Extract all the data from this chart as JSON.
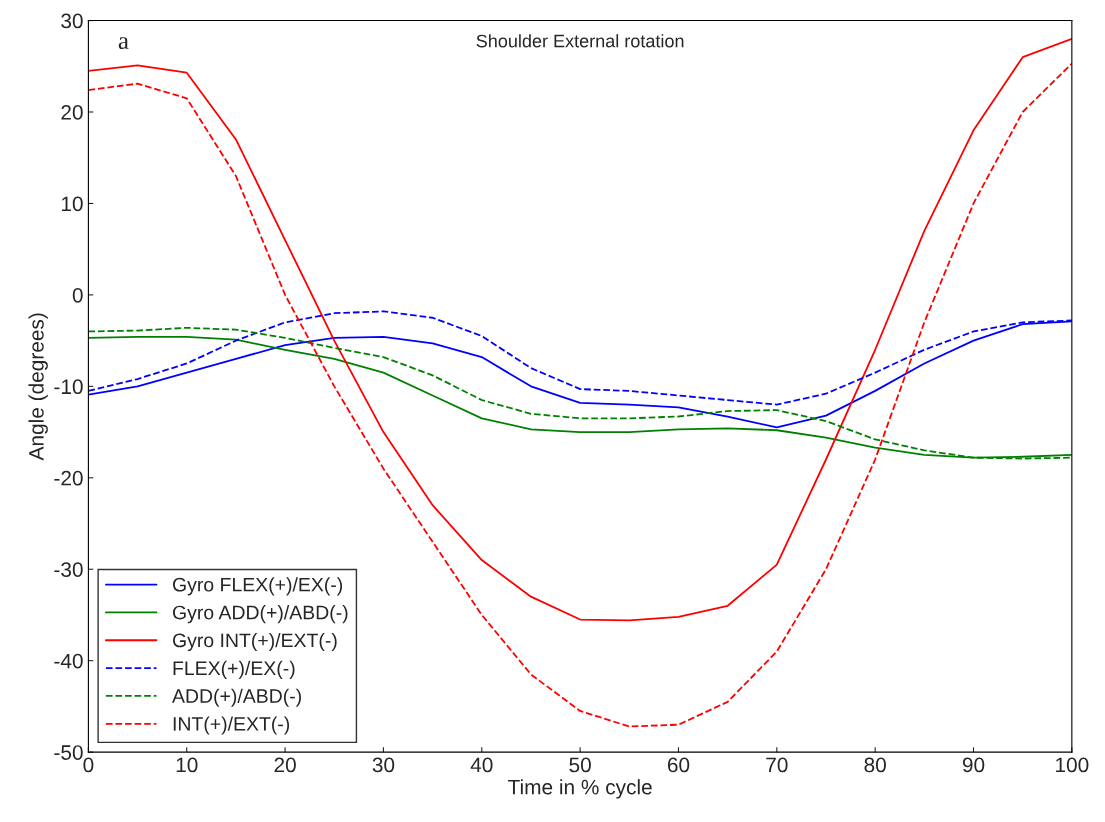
{
  "chart_data": {
    "type": "line",
    "title": "Shoulder External rotation",
    "xlabel": "Time in % cycle",
    "ylabel": "Angle (degrees)",
    "annotations": [
      "a"
    ],
    "x": [
      0,
      5,
      10,
      15,
      20,
      25,
      30,
      35,
      40,
      45,
      50,
      55,
      60,
      65,
      70,
      75,
      80,
      85,
      90,
      95,
      100
    ],
    "series": [
      {
        "name": "Gyro FLEX(+)/EX(-)",
        "color": "#0000ff",
        "line_style": "solid",
        "values": [
          -10.9,
          -10,
          -8.5,
          -7,
          -5.5,
          -4.7,
          -4.6,
          -5.3,
          -6.8,
          -10,
          -11.8,
          -12,
          -12.3,
          -13.3,
          -14.5,
          -13.2,
          -10.5,
          -7.5,
          -5,
          -3.2,
          -2.9
        ]
      },
      {
        "name": "Gyro ADD(+)/ABD(-)",
        "color": "#008000",
        "line_style": "solid",
        "values": [
          -4.7,
          -4.6,
          -4.6,
          -4.9,
          -6,
          -7,
          -8.5,
          -11,
          -13.5,
          -14.7,
          -15,
          -15,
          -14.7,
          -14.6,
          -14.8,
          -15.6,
          -16.7,
          -17.5,
          -17.8,
          -17.7,
          -17.5
        ]
      },
      {
        "name": "Gyro INT(+)/EXT(-)",
        "color": "#ff0000",
        "line_style": "solid",
        "values": [
          24.5,
          25.1,
          24.3,
          17,
          6,
          -5,
          -15,
          -23,
          -29,
          -33,
          -35.5,
          -35.6,
          -35.2,
          -34,
          -29.5,
          -18,
          -6,
          7,
          18,
          26,
          28
        ]
      },
      {
        "name": "FLEX(+)/EX(-)",
        "color": "#0000ff",
        "line_style": "dashed",
        "values": [
          -10.5,
          -9.2,
          -7.5,
          -5,
          -3,
          -2,
          -1.8,
          -2.5,
          -4.5,
          -8,
          -10.3,
          -10.5,
          -11,
          -11.5,
          -12,
          -10.8,
          -8.5,
          -6,
          -4,
          -3,
          -2.8
        ]
      },
      {
        "name": "ADD(+)/ABD(-)",
        "color": "#008000",
        "line_style": "dashed",
        "values": [
          -4,
          -3.9,
          -3.6,
          -3.8,
          -4.7,
          -5.8,
          -6.8,
          -8.8,
          -11.5,
          -13,
          -13.5,
          -13.5,
          -13.3,
          -12.7,
          -12.6,
          -13.8,
          -15.8,
          -17,
          -17.8,
          -17.9,
          -17.8
        ]
      },
      {
        "name": "INT(+)/EXT(-)",
        "color": "#ff0000",
        "line_style": "dashed",
        "values": [
          22.4,
          23.1,
          21.5,
          13,
          0,
          -10,
          -19,
          -27,
          -35,
          -41.5,
          -45.5,
          -47.2,
          -47,
          -44.5,
          -39,
          -30,
          -18,
          -3,
          10,
          20,
          25.3
        ]
      }
    ],
    "xlim": [
      0,
      100
    ],
    "xticks": [
      0,
      10,
      20,
      30,
      40,
      50,
      60,
      70,
      80,
      90,
      100
    ],
    "ylim": [
      -50,
      30
    ],
    "yticks": [
      -50,
      -40,
      -30,
      -20,
      -10,
      0,
      10,
      20,
      30
    ],
    "legend": "bottom left",
    "grid": false
  }
}
